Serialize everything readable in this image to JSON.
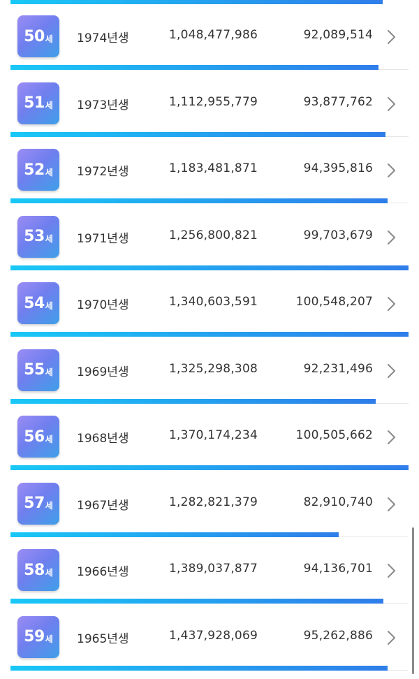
{
  "unit": "세",
  "birth_suffix": "년생",
  "rows": [
    {
      "age": "50",
      "birth_year": "1974",
      "total": "1,048,477,986",
      "amount": "92,089,514",
      "bar_fraction": 0.925
    },
    {
      "age": "51",
      "birth_year": "1973",
      "total": "1,112,955,779",
      "amount": "93,877,762",
      "bar_fraction": 0.942
    },
    {
      "age": "52",
      "birth_year": "1972",
      "total": "1,183,481,871",
      "amount": "94,395,816",
      "bar_fraction": 0.947
    },
    {
      "age": "53",
      "birth_year": "1971",
      "total": "1,256,800,821",
      "amount": "99,703,679",
      "bar_fraction": 1.0
    },
    {
      "age": "54",
      "birth_year": "1970",
      "total": "1,340,603,591",
      "amount": "100,548,207",
      "bar_fraction": 1.0
    },
    {
      "age": "55",
      "birth_year": "1969",
      "total": "1,325,298,308",
      "amount": "92,231,496",
      "bar_fraction": 0.917
    },
    {
      "age": "56",
      "birth_year": "1968",
      "total": "1,370,174,234",
      "amount": "100,505,662",
      "bar_fraction": 1.0
    },
    {
      "age": "57",
      "birth_year": "1967",
      "total": "1,282,821,379",
      "amount": "82,910,740",
      "bar_fraction": 0.824
    },
    {
      "age": "58",
      "birth_year": "1966",
      "total": "1,389,037,877",
      "amount": "94,136,701",
      "bar_fraction": 0.936
    },
    {
      "age": "59",
      "birth_year": "1965",
      "total": "1,437,928,069",
      "amount": "95,262,886",
      "bar_fraction": 0.947
    }
  ],
  "colors": {
    "bar_start": "#19c8f6",
    "bar_end": "#2f7de9",
    "badge_start": "#9b8cf5",
    "badge_end": "#3f9fe9"
  },
  "icons": {
    "row_action": "chevron-right-icon"
  }
}
